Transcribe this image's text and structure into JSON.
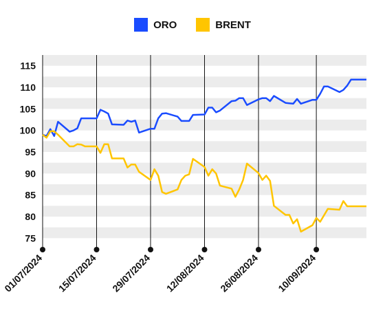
{
  "chart_data": {
    "type": "line",
    "title": "",
    "xlabel": "",
    "ylabel": "",
    "ylim": [
      72.5,
      117.5
    ],
    "yticks": [
      75,
      80,
      85,
      90,
      95,
      100,
      105,
      110,
      115
    ],
    "ytick_labels": [
      "75",
      "80",
      "85",
      "90",
      "95",
      "100",
      "105",
      "110",
      "115"
    ],
    "xtick_labels": [
      "01/07/2024",
      "15/07/2024",
      "29/07/2024",
      "12/08/2024",
      "26/08/2024",
      "10/09/2024"
    ],
    "xlim": [
      "2024-07-01",
      "2024-09-23"
    ],
    "x": [
      "2024-07-01",
      "2024-07-02",
      "2024-07-03",
      "2024-07-04",
      "2024-07-05",
      "2024-07-08",
      "2024-07-09",
      "2024-07-10",
      "2024-07-11",
      "2024-07-12",
      "2024-07-15",
      "2024-07-16",
      "2024-07-17",
      "2024-07-18",
      "2024-07-19",
      "2024-07-22",
      "2024-07-23",
      "2024-07-24",
      "2024-07-25",
      "2024-07-26",
      "2024-07-29",
      "2024-07-30",
      "2024-07-31",
      "2024-08-01",
      "2024-08-02",
      "2024-08-05",
      "2024-08-06",
      "2024-08-07",
      "2024-08-08",
      "2024-08-09",
      "2024-08-12",
      "2024-08-13",
      "2024-08-14",
      "2024-08-15",
      "2024-08-16",
      "2024-08-19",
      "2024-08-20",
      "2024-08-21",
      "2024-08-22",
      "2024-08-23",
      "2024-08-26",
      "2024-08-27",
      "2024-08-28",
      "2024-08-29",
      "2024-08-30",
      "2024-09-02",
      "2024-09-03",
      "2024-09-04",
      "2024-09-05",
      "2024-09-06",
      "2024-09-09",
      "2024-09-10",
      "2024-09-11",
      "2024-09-12",
      "2024-09-13",
      "2024-09-16",
      "2024-09-17",
      "2024-09-18",
      "2024-09-19",
      "2024-09-20",
      "2024-09-23"
    ],
    "series": [
      {
        "name": "ORO",
        "color": "#1a4cff",
        "values": [
          99.0,
          98.7,
          100.3,
          98.7,
          102.0,
          99.7,
          100.0,
          100.5,
          102.8,
          102.8,
          102.8,
          104.8,
          104.4,
          103.9,
          101.4,
          101.3,
          102.3,
          102.0,
          102.3,
          99.5,
          100.4,
          100.4,
          102.8,
          103.9,
          104.0,
          103.2,
          102.2,
          102.2,
          102.2,
          103.6,
          103.7,
          105.3,
          105.3,
          104.2,
          104.6,
          106.8,
          106.9,
          107.5,
          107.5,
          105.9,
          107.2,
          107.5,
          107.5,
          106.8,
          108.0,
          106.4,
          106.3,
          106.2,
          107.3,
          106.2,
          107.1,
          107.1,
          108.5,
          110.2,
          110.2,
          108.9,
          109.4,
          110.4,
          111.8,
          111.8,
          111.8
        ]
      },
      {
        "name": "BRENT",
        "color": "#ffc500",
        "values": [
          99.0,
          98.3,
          99.8,
          99.8,
          99.0,
          96.3,
          96.3,
          96.8,
          96.7,
          96.3,
          96.3,
          94.8,
          96.8,
          96.8,
          93.5,
          93.5,
          91.4,
          92.1,
          92.1,
          90.4,
          88.5,
          91.0,
          89.5,
          85.7,
          85.3,
          86.3,
          88.5,
          89.5,
          89.8,
          93.4,
          91.5,
          89.5,
          91.0,
          90.0,
          87.2,
          86.5,
          84.6,
          86.3,
          88.5,
          92.3,
          90.1,
          88.5,
          89.5,
          88.3,
          82.5,
          80.4,
          80.4,
          78.4,
          79.4,
          76.5,
          78.0,
          79.7,
          78.8,
          80.3,
          81.8,
          81.6,
          83.6,
          82.4,
          82.4,
          82.4,
          82.4
        ]
      }
    ],
    "grid": true,
    "legend_position": "top-center"
  }
}
